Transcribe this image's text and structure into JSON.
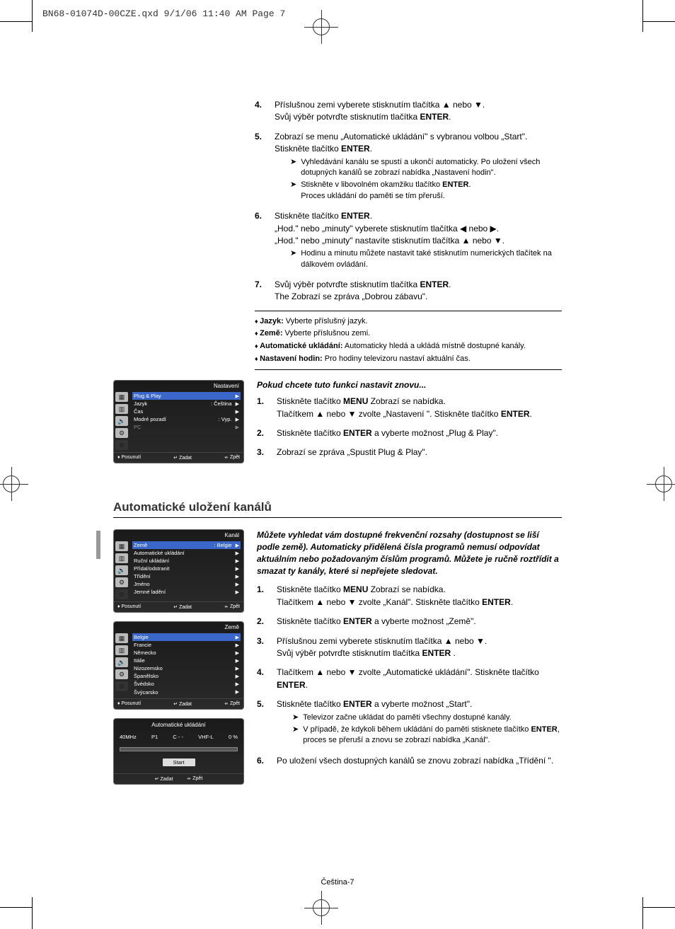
{
  "meta_header": "BN68-01074D-00CZE.qxd  9/1/06  11:40 AM  Page 7",
  "page_footer": "Čeština-7",
  "top_steps": [
    {
      "n": "4.",
      "lines": [
        "Příslušnou zemi vyberete stisknutím tlačítka ▲ nebo ▼.",
        "Svůj výběr potvrďte stisknutím tlačítka <b>ENTER</b>."
      ]
    },
    {
      "n": "5.",
      "lines": [
        "Zobrazí se menu „Automatické ukládání\" s vybranou volbou „Start\".",
        "Stiskněte tlačítko <b>ENTER</b>."
      ],
      "notes": [
        "Vyhledávání kanálu se spustí a ukončí automaticky. Po uložení všech dotupných kanálů se zobrazí nabídka „Nastavení hodin\".",
        "Stiskněte v libovolném okamžiku tlačítko <b>ENTER</b>.<br>Proces ukládání do paměti se tím přeruší."
      ]
    },
    {
      "n": "6.",
      "lines": [
        "Stiskněte tlačítko <b>ENTER</b>.",
        "„Hod.\" nebo „minuty\" vyberete stisknutím tlačítka ◀ nebo ▶.",
        "„Hod.\" nebo „minuty\" nastavíte stisknutím tlačítka ▲ nebo ▼."
      ],
      "notes": [
        "Hodinu a minutu můžete nastavit také stisknutím numerických tlačítek na dálkovém ovládání."
      ]
    },
    {
      "n": "7.",
      "lines": [
        "Svůj výběr potvrďte stisknutím tlačítka <b>ENTER</b>.",
        "The Zobrazí se zpráva „Dobrou zábavu\"."
      ]
    }
  ],
  "bullets": [
    {
      "k": "Jazyk:",
      "v": " Vyberte příslušný jazyk."
    },
    {
      "k": "Země:",
      "v": " Vyberte příslušnou zemi."
    },
    {
      "k": "Automatické ukládání:",
      "v": " Automaticky hledá a ukládá místně dostupné kanály."
    },
    {
      "k": "Nastavení hodin:",
      "v": " Pro hodiny televizoru nastaví aktuální čas."
    }
  ],
  "sub_heading": "Pokud chcete tuto funkci nastavit znovu...",
  "sub_steps": [
    {
      "n": "1.",
      "html": "Stiskněte tlačítko <b>MENU</b> Zobrazí se nabídka.<br>Tlačítkem ▲ nebo ▼ zvolte „Nastavení \". Stiskněte tlačítko <b>ENTER</b>."
    },
    {
      "n": "2.",
      "html": "Stiskněte tlačítko <b>ENTER</b> a vyberte možnost „Plug & Play\"."
    },
    {
      "n": "3.",
      "html": "Zobrazí se zpráva „Spustit Plug & Play\"."
    }
  ],
  "osd1": {
    "title": "Nastavení",
    "rows": [
      {
        "l": "Plug & Play",
        "r": "",
        "hl": true
      },
      {
        "l": "Jazyk",
        "r": ": Čeština"
      },
      {
        "l": "Čas",
        "r": ""
      },
      {
        "l": "Modré pozadí",
        "r": ": Vyp."
      },
      {
        "l": "PC",
        "r": "",
        "dim": true
      }
    ],
    "footer": [
      "♦ Posunutí",
      "↵ Zadat",
      "⦵ Zpět"
    ]
  },
  "section2_title": "Automatické uložení kanálů",
  "section2_intro": "Můžete vyhledat vám dostupné frekvenční rozsahy (dostupnost se liší podle země). Automaticky přidělená čísla programů nemusí odpovídat aktuálním nebo požadovaným číslům programů. Můžete je ručně roztřídit a smazat ty kanály, které si nepřejete sledovat.",
  "section2_steps": [
    {
      "n": "1.",
      "html": "Stiskněte tlačítko <b>MENU</b> Zobrazí se nabídka.<br>Tlačítkem ▲ nebo ▼ zvolte „Kanál\". Stiskněte tlačítko <b>ENTER</b>."
    },
    {
      "n": "2.",
      "html": "Stiskněte tlačítko <b>ENTER</b> a vyberte možnost „Země\"."
    },
    {
      "n": "3.",
      "html": "Příslušnou zemi vyberete stisknutím tlačítka ▲ nebo ▼.<br>Svůj výběr potvrďte stisknutím tlačítka <b>ENTER</b> ."
    },
    {
      "n": "4.",
      "html": "Tlačítkem ▲ nebo ▼ zvolte „Automatické ukládání\". Stiskněte tlačítko <b>ENTER</b>."
    },
    {
      "n": "5.",
      "html": "Stiskněte tlačítko <b>ENTER</b> a vyberte možnost „Start\".",
      "notes": [
        "Televizor začne ukládat do paměti všechny dostupné kanály.",
        "V případě, že kdykoli během ukládání do paměti stisknete tlačítko <b>ENTER</b>, proces se přeruší a znovu se zobrazí nabídka „Kanál\"."
      ]
    },
    {
      "n": "6.",
      "html": "Po uložení všech dostupných kanálů se znovu zobrazí nabídka „Třídění \"."
    }
  ],
  "osd2": {
    "title": "Kanál",
    "rows": [
      {
        "l": "Země",
        "r": ": Belgie",
        "hl": true
      },
      {
        "l": "Automatické ukládání",
        "r": ""
      },
      {
        "l": "Ruční ukládání",
        "r": ""
      },
      {
        "l": "Přídal/odstranit",
        "r": ""
      },
      {
        "l": "Třídění",
        "r": ""
      },
      {
        "l": "Jméno",
        "r": ""
      },
      {
        "l": "Jemné ladění",
        "r": ""
      }
    ],
    "footer": [
      "♦ Posunutí",
      "↵ Zadat",
      "⦵ Zpět"
    ]
  },
  "osd3": {
    "title": "Země",
    "rows": [
      {
        "l": "Belgie",
        "r": "",
        "hl": true
      },
      {
        "l": "Francie",
        "r": ""
      },
      {
        "l": "Německo",
        "r": ""
      },
      {
        "l": "Itálie",
        "r": ""
      },
      {
        "l": "Nizozemsko",
        "r": ""
      },
      {
        "l": "Španělsko",
        "r": ""
      },
      {
        "l": "Švédsko",
        "r": ""
      },
      {
        "l": "Švýcarsko",
        "r": ""
      }
    ],
    "footer": [
      "♦ Posunutí",
      "↵ Zadat",
      "⦵ Zpět"
    ]
  },
  "osd4": {
    "title": "Automatické ukládání",
    "readout": [
      "40MHz",
      "P1",
      "C - -",
      "VHF-L",
      "0 %"
    ],
    "btn": "Start",
    "footer": [
      "↵ Zadat",
      "⦵ Zpět"
    ]
  },
  "osd_icons": [
    "▦",
    "▥",
    "🔊",
    "⚙",
    "✿"
  ]
}
